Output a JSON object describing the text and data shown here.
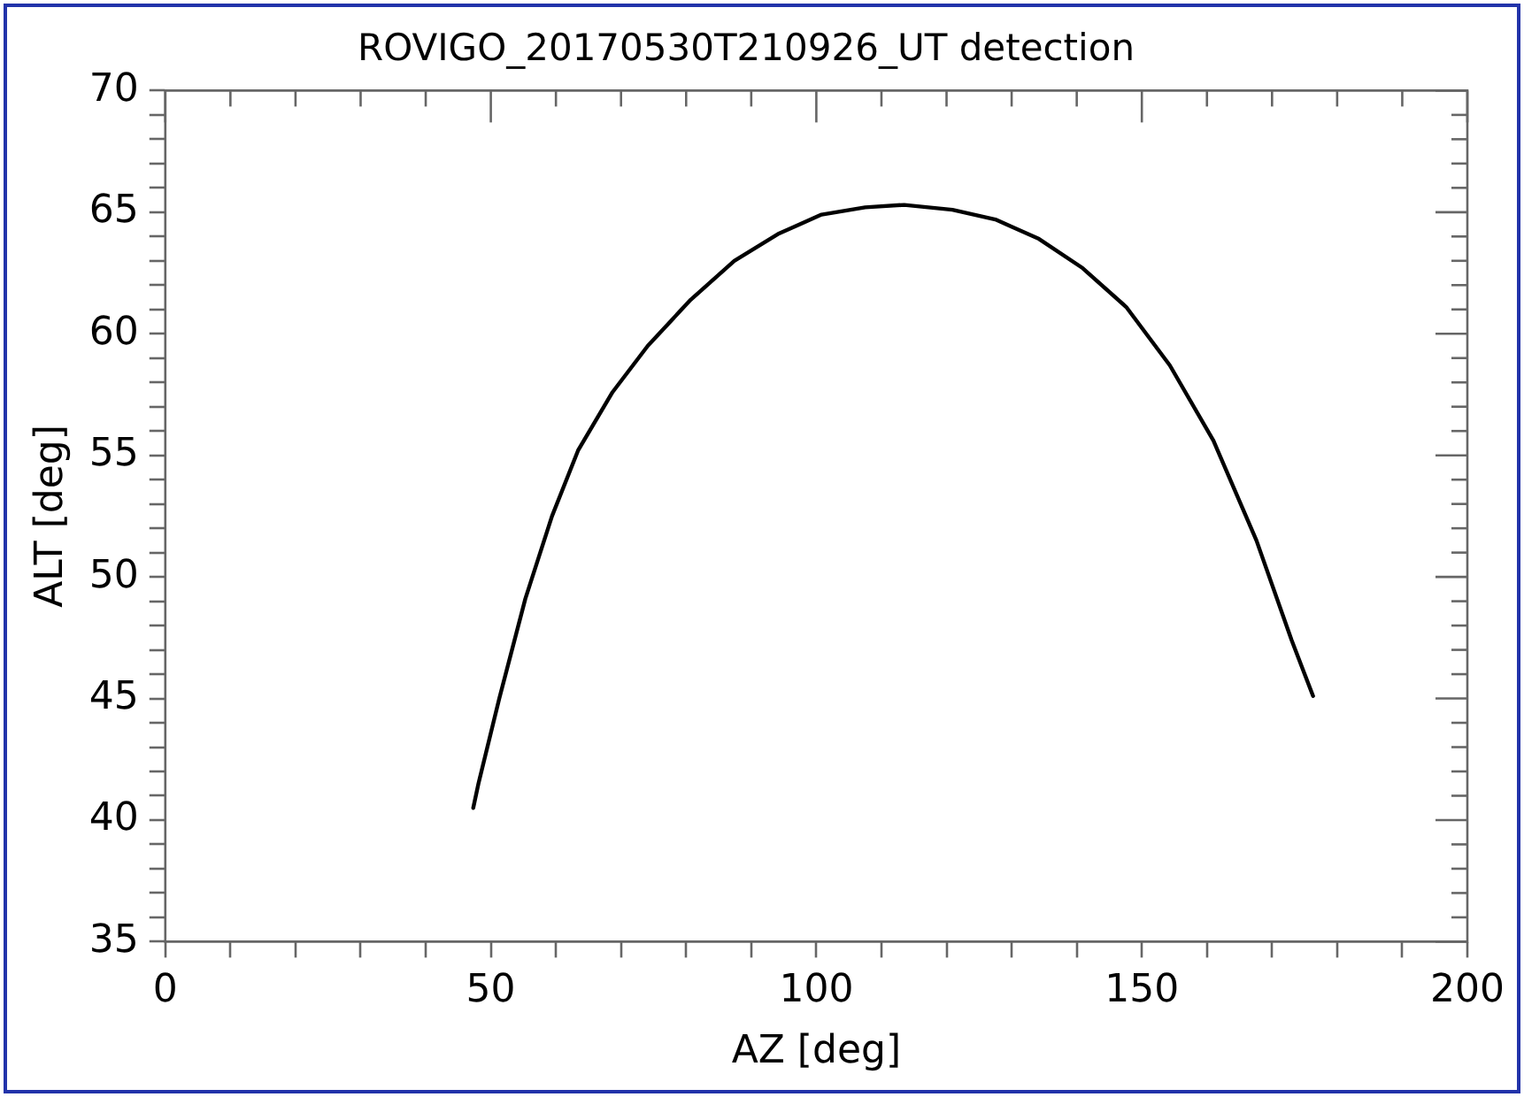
{
  "chart_data": {
    "type": "line",
    "title": "ROVIGO_20170530T210926_UT detection",
    "xlabel": "AZ [deg]",
    "ylabel": "ALT [deg]",
    "x": [
      47.3,
      48.1,
      51.3,
      55.3,
      59.4,
      63.4,
      68.7,
      74.1,
      80.7,
      87.4,
      94.1,
      100.8,
      107.5,
      113.5,
      120.9,
      127.5,
      134.2,
      140.9,
      147.6,
      154.3,
      161.0,
      167.6,
      173.0,
      176.3
    ],
    "series": [
      {
        "color": "#000000",
        "values": [
          40.5,
          41.5,
          45.0,
          49.1,
          52.5,
          55.2,
          57.6,
          59.5,
          61.4,
          63.0,
          64.1,
          64.9,
          65.2,
          65.3,
          65.1,
          64.7,
          63.9,
          62.7,
          61.1,
          58.7,
          55.6,
          51.5,
          47.4,
          45.1
        ]
      }
    ],
    "xlim": [
      0,
      200
    ],
    "xticks": [
      0,
      {
        "value": 10,
        "label": null
      },
      {
        "value": 20,
        "label": null
      },
      {
        "value": 30,
        "label": null
      },
      {
        "value": 40,
        "label": null
      },
      50,
      {
        "value": 60,
        "label": null
      },
      {
        "value": 70,
        "label": null
      },
      {
        "value": 80,
        "label": null
      },
      {
        "value": 90,
        "label": null
      },
      100,
      {
        "value": 110,
        "label": null
      },
      {
        "value": 120,
        "label": null
      },
      {
        "value": 130,
        "label": null
      },
      {
        "value": 140,
        "label": null
      },
      150,
      {
        "value": 160,
        "label": null
      },
      {
        "value": 170,
        "label": null
      },
      {
        "value": 180,
        "label": null
      },
      {
        "value": 190,
        "label": null
      },
      200
    ],
    "ylim": [
      35,
      70
    ],
    "yticks": [
      35,
      {
        "value": 36,
        "label": null
      },
      {
        "value": 37,
        "label": null
      },
      {
        "value": 38,
        "label": null
      },
      {
        "value": 39,
        "label": null
      },
      40,
      {
        "value": 41,
        "label": null
      },
      {
        "value": 42,
        "label": null
      },
      {
        "value": 43,
        "label": null
      },
      {
        "value": 44,
        "label": null
      },
      45,
      {
        "value": 46,
        "label": null
      },
      {
        "value": 47,
        "label": null
      },
      {
        "value": 48,
        "label": null
      },
      {
        "value": 49,
        "label": null
      },
      50,
      {
        "value": 51,
        "label": null
      },
      {
        "value": 52,
        "label": null
      },
      {
        "value": 53,
        "label": null
      },
      {
        "value": 54,
        "label": null
      },
      55,
      {
        "value": 56,
        "label": null
      },
      {
        "value": 57,
        "label": null
      },
      {
        "value": 58,
        "label": null
      },
      {
        "value": 59,
        "label": null
      },
      60,
      {
        "value": 61,
        "label": null
      },
      {
        "value": 62,
        "label": null
      },
      {
        "value": 63,
        "label": null
      },
      {
        "value": 64,
        "label": null
      },
      65,
      {
        "value": 66,
        "label": null
      },
      {
        "value": 67,
        "label": null
      },
      {
        "value": 68,
        "label": null
      },
      {
        "value": 69,
        "label": null
      },
      70
    ],
    "grid": false,
    "legend": false,
    "marker": "none",
    "line_style": "solid"
  }
}
